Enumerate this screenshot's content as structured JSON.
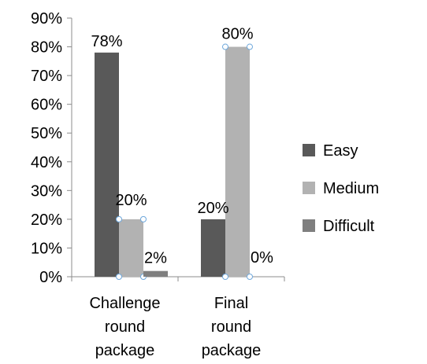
{
  "chart_data": {
    "type": "bar",
    "categories": [
      [
        "Challenge",
        "round",
        "package"
      ],
      [
        "Final",
        "round",
        "package"
      ]
    ],
    "series": [
      {
        "name": "Easy",
        "values": [
          78,
          20
        ],
        "labels": [
          "78%",
          "20%"
        ],
        "color": "#595959"
      },
      {
        "name": "Medium",
        "values": [
          20,
          80
        ],
        "labels": [
          "20%",
          "80%"
        ],
        "color": "#b2b2b2"
      },
      {
        "name": "Difficult",
        "values": [
          2,
          0
        ],
        "labels": [
          "2%",
          "0%"
        ],
        "color": "#7f7f7f"
      }
    ],
    "ylim": [
      0,
      90
    ],
    "yticks": [
      0,
      10,
      20,
      30,
      40,
      50,
      60,
      70,
      80,
      90
    ],
    "ytick_labels": [
      "0%",
      "10%",
      "20%",
      "30%",
      "40%",
      "50%",
      "60%",
      "70%",
      "80%",
      "90%"
    ],
    "title": "",
    "xlabel": "",
    "ylabel": "",
    "grid": false,
    "legend": "right"
  }
}
